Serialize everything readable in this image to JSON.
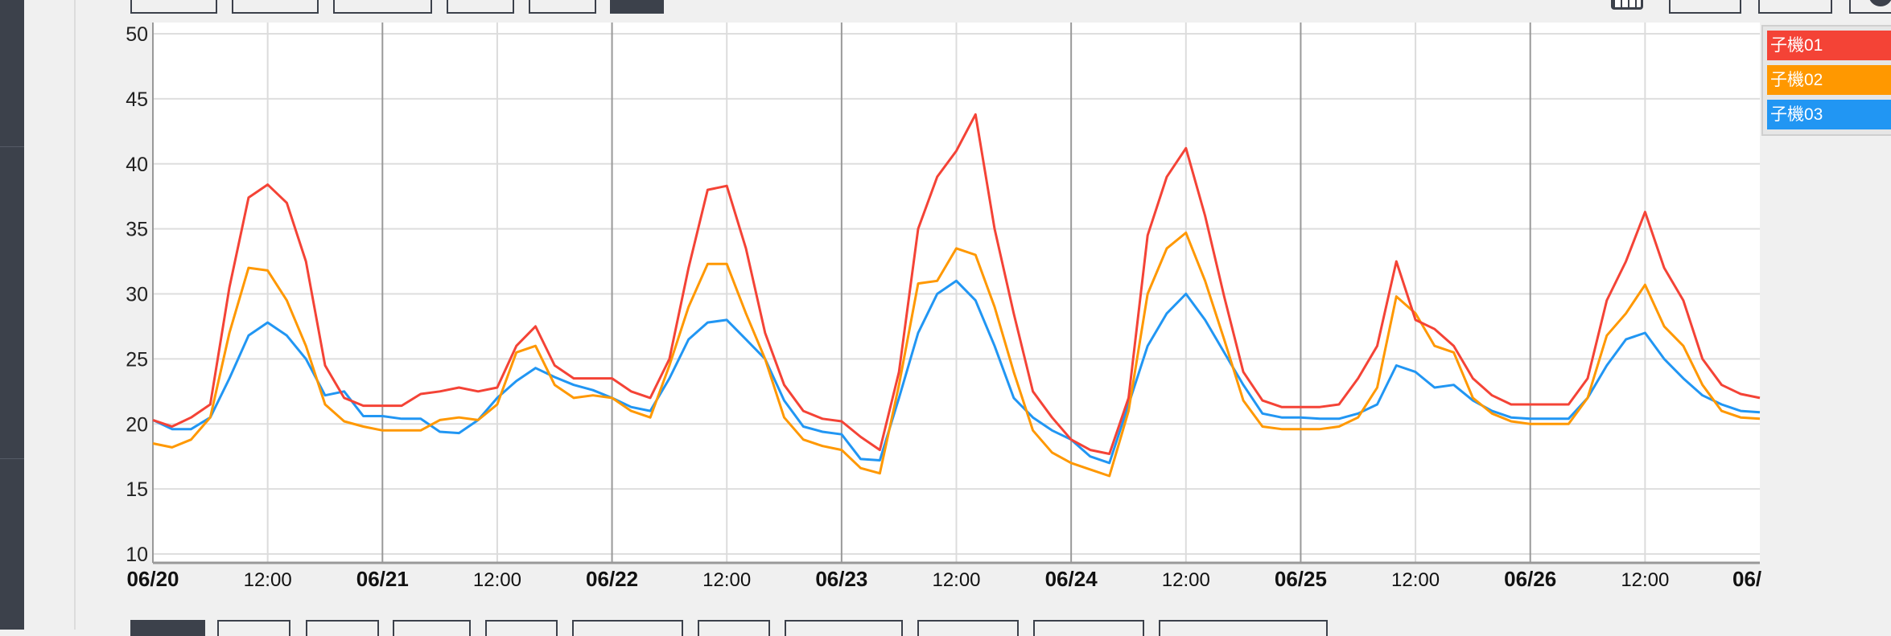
{
  "colors": {
    "series01": "#f44336",
    "series02": "#ff9800",
    "series03": "#2196f3",
    "sidebar": "#3c414b"
  },
  "icons": {
    "calendar": "calendar-icon"
  },
  "chart_data": {
    "type": "line",
    "title": "",
    "xlabel": "",
    "ylabel": "",
    "ylim": [
      10,
      50
    ],
    "yticks": [
      10,
      15,
      20,
      25,
      30,
      35,
      40,
      45,
      50
    ],
    "grid": true,
    "legend_position": "right",
    "x_start": "06/20 00:00",
    "x_end": "06/27 00:00",
    "x_interval_hours": 2,
    "xticks": [
      "06/20",
      "12:00",
      "06/21",
      "12:00",
      "06/22",
      "12:00",
      "06/23",
      "12:00",
      "06/24",
      "12:00",
      "06/25",
      "12:00",
      "06/26",
      "12:00",
      "06/"
    ],
    "series": [
      {
        "name": "子機01",
        "color": "#f44336",
        "values": [
          20.3,
          19.8,
          20.5,
          21.5,
          30.5,
          37.4,
          38.4,
          37.0,
          32.5,
          24.5,
          22.0,
          21.4,
          21.4,
          21.4,
          22.3,
          22.5,
          22.8,
          22.5,
          22.8,
          26.0,
          27.5,
          24.5,
          23.5,
          23.5,
          23.5,
          22.5,
          22.0,
          25.0,
          32.0,
          38.0,
          38.3,
          33.5,
          27.0,
          23.0,
          21.0,
          20.4,
          20.2,
          19.0,
          18.0,
          24.0,
          35.0,
          39.0,
          41.0,
          43.8,
          35.0,
          28.5,
          22.5,
          20.5,
          18.8,
          18.0,
          17.7,
          22.0,
          34.5,
          39.0,
          41.2,
          36.0,
          29.8,
          24.0,
          21.8,
          21.3,
          21.3,
          21.3,
          21.5,
          23.5,
          26.0,
          32.5,
          28.0,
          27.3,
          26.0,
          23.5,
          22.2,
          21.5,
          21.5,
          21.5,
          21.5,
          23.5,
          29.5,
          32.5,
          36.3,
          32.0,
          29.5,
          25.0,
          23.0,
          22.3,
          22.0
        ]
      },
      {
        "name": "子機02",
        "color": "#ff9800",
        "values": [
          18.5,
          18.2,
          18.8,
          20.5,
          27.0,
          32.0,
          31.8,
          29.5,
          26.0,
          21.5,
          20.2,
          19.8,
          19.5,
          19.5,
          19.5,
          20.3,
          20.5,
          20.3,
          21.5,
          25.5,
          26.0,
          23.0,
          22.0,
          22.2,
          22.0,
          21.0,
          20.5,
          24.5,
          29.0,
          32.3,
          32.3,
          28.5,
          25.0,
          20.5,
          18.8,
          18.3,
          18.0,
          16.6,
          16.2,
          23.0,
          30.8,
          31.0,
          33.5,
          33.0,
          29.0,
          24.0,
          19.5,
          17.8,
          17.0,
          16.5,
          16.0,
          21.0,
          30.0,
          33.5,
          34.7,
          31.0,
          26.5,
          21.8,
          19.8,
          19.6,
          19.6,
          19.6,
          19.8,
          20.5,
          22.8,
          29.8,
          28.5,
          26.0,
          25.5,
          22.0,
          20.8,
          20.2,
          20.0,
          20.0,
          20.0,
          22.0,
          26.8,
          28.5,
          30.7,
          27.5,
          26.0,
          23.0,
          21.0,
          20.5,
          20.4
        ]
      },
      {
        "name": "子機03",
        "color": "#2196f3",
        "values": [
          20.3,
          19.6,
          19.6,
          20.5,
          23.5,
          26.8,
          27.8,
          26.8,
          25.0,
          22.2,
          22.5,
          20.6,
          20.6,
          20.4,
          20.4,
          19.4,
          19.3,
          20.3,
          22.0,
          23.3,
          24.3,
          23.6,
          23.0,
          22.6,
          22.0,
          21.3,
          21.0,
          23.5,
          26.5,
          27.8,
          28.0,
          26.5,
          25.0,
          21.8,
          19.8,
          19.4,
          19.2,
          17.3,
          17.2,
          22.0,
          27.0,
          30.0,
          31.0,
          29.5,
          26.0,
          22.0,
          20.5,
          19.5,
          18.8,
          17.5,
          17.0,
          21.5,
          26.0,
          28.5,
          30.0,
          28.0,
          25.5,
          23.0,
          20.8,
          20.5,
          20.5,
          20.4,
          20.4,
          20.8,
          21.5,
          24.5,
          24.0,
          22.8,
          23.0,
          21.8,
          21.0,
          20.5,
          20.4,
          20.4,
          20.4,
          22.0,
          24.5,
          26.5,
          27.0,
          25.0,
          23.5,
          22.2,
          21.5,
          21.0,
          20.9
        ]
      }
    ]
  }
}
